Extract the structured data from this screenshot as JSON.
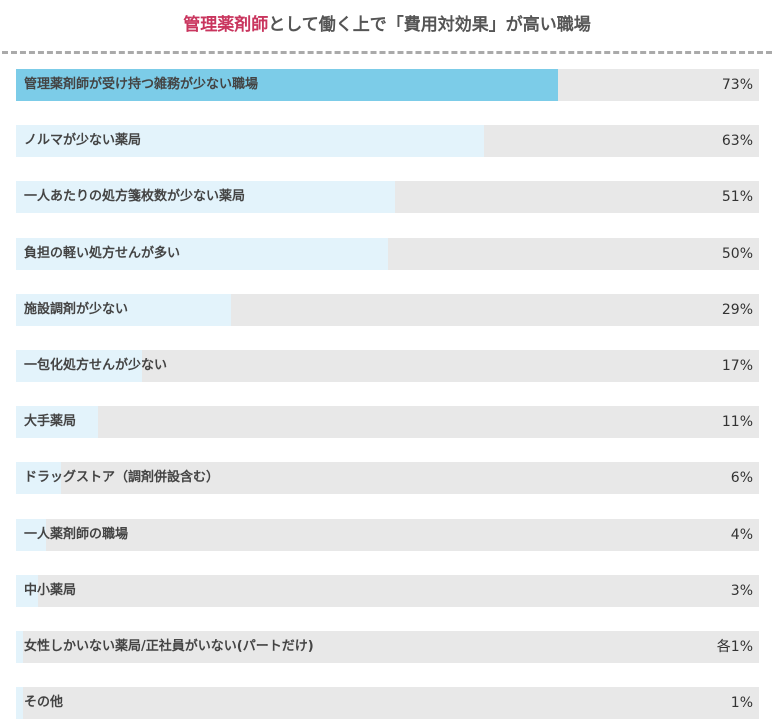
{
  "title": {
    "highlight": "管理薬剤師",
    "rest": "として働く上で「費用対効果」が高い職場"
  },
  "colors": {
    "title_accent": "#c9355e",
    "top_bar": "#7ccce8",
    "bar": "#e3f3fb",
    "track": "#e8e8e8"
  },
  "chart_data": {
    "type": "bar",
    "orientation": "horizontal",
    "title": "管理薬剤師として働く上で「費用対効果」が高い職場",
    "unit": "%",
    "xlim": [
      0,
      100
    ],
    "categories": [
      "管理薬剤師が受け持つ雑務が少ない職場",
      "ノルマが少ない薬局",
      "一人あたりの処方箋枚数が少ない薬局",
      "負担の軽い処方せんが多い",
      "施設調剤が少ない",
      "一包化処方せんが少ない",
      "大手薬局",
      "ドラッグストア（調剤併設含む）",
      "一人薬剤師の職場",
      "中小薬局",
      "女性しかいない薬局/正社員がいない(パートだけ)",
      "その他"
    ],
    "values": [
      73,
      63,
      51,
      50,
      29,
      17,
      11,
      6,
      4,
      3,
      1,
      1
    ],
    "value_labels": [
      "73%",
      "63%",
      "51%",
      "50%",
      "29%",
      "17%",
      "11%",
      "6%",
      "4%",
      "3%",
      "各1%",
      "1%"
    ]
  }
}
